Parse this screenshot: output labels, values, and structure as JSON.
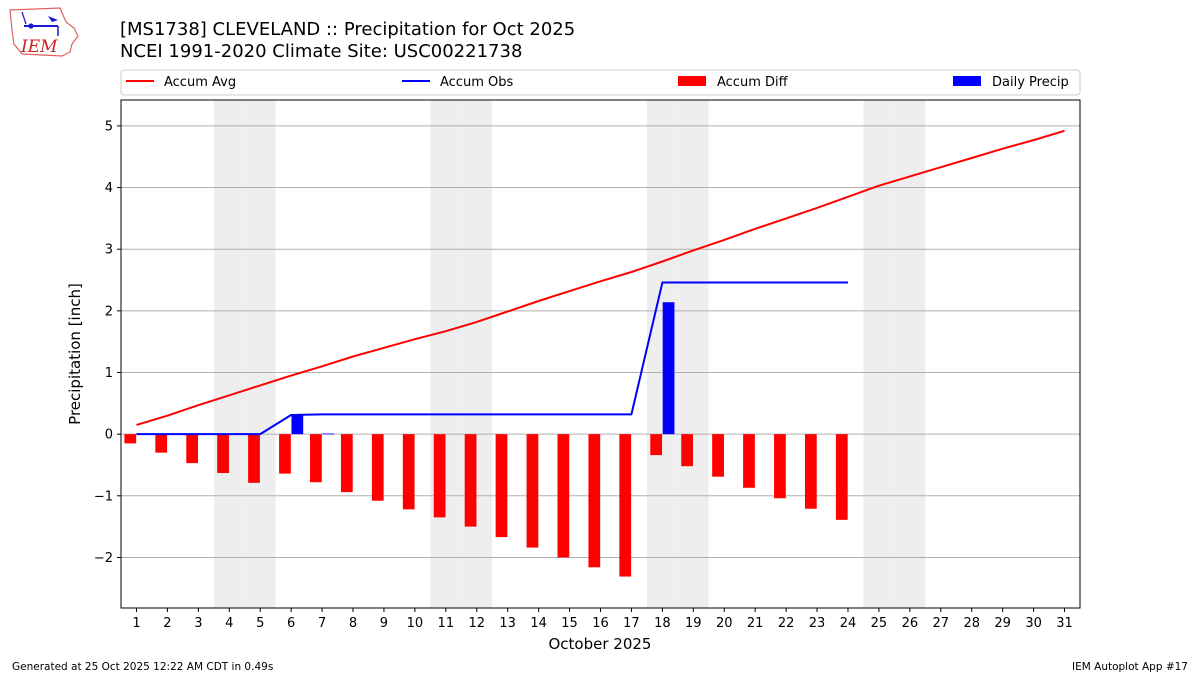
{
  "header": {
    "title_line1": "[MS1738] CLEVELAND :: Precipitation for Oct 2025",
    "title_line2": "NCEI 1991-2020 Climate Site: USC00221738",
    "logo_text": "IEM"
  },
  "footer": {
    "generated": "Generated at 25 Oct 2025 12:22 AM CDT in 0.49s",
    "app": "IEM Autoplot App #17"
  },
  "colors": {
    "avg": "#ff0000",
    "obs": "#0000ff",
    "diff": "#ff0000",
    "daily": "#0000ff",
    "weekend": "#eeeeee",
    "grid": "#b0b0b0"
  },
  "chart_data": {
    "type": "bar",
    "title": "[MS1738] CLEVELAND :: Precipitation for Oct 2025",
    "subtitle": "NCEI 1991-2020 Climate Site: USC00221738",
    "xlabel": "October 2025",
    "ylabel": "Precipitation [inch]",
    "xlim": [
      0.5,
      31.5
    ],
    "ylim": [
      -2.82,
      5.42
    ],
    "yticks": [
      -2,
      -1,
      0,
      1,
      2,
      3,
      4,
      5
    ],
    "ytick_labels": [
      "−2",
      "−1",
      "0",
      "1",
      "2",
      "3",
      "4",
      "5"
    ],
    "grid": "y",
    "legend_placement": "top",
    "x": [
      1,
      2,
      3,
      4,
      5,
      6,
      7,
      8,
      9,
      10,
      11,
      12,
      13,
      14,
      15,
      16,
      17,
      18,
      19,
      20,
      21,
      22,
      23,
      24,
      25,
      26,
      27,
      28,
      29,
      30,
      31
    ],
    "xtick_labels": [
      "1",
      "2",
      "3",
      "4",
      "5",
      "6",
      "7",
      "8",
      "9",
      "10",
      "11",
      "12",
      "13",
      "14",
      "15",
      "16",
      "17",
      "18",
      "19",
      "20",
      "21",
      "22",
      "23",
      "24",
      "25",
      "26",
      "27",
      "28",
      "29",
      "30",
      "31"
    ],
    "weekend_days": [
      4,
      5,
      11,
      12,
      18,
      19,
      25,
      26
    ],
    "legend": [
      {
        "label": "Accum Avg",
        "kind": "line",
        "color": "#ff0000"
      },
      {
        "label": "Accum Obs",
        "kind": "line",
        "color": "#0000ff"
      },
      {
        "label": "Accum Diff",
        "kind": "bar",
        "color": "#ff0000"
      },
      {
        "label": "Daily Precip",
        "kind": "bar",
        "color": "#0000ff"
      }
    ],
    "series": [
      {
        "name": "Accum Avg",
        "type": "line",
        "color": "#ff0000",
        "x": [
          1,
          2,
          3,
          4,
          5,
          6,
          7,
          8,
          9,
          10,
          11,
          12,
          13,
          14,
          15,
          16,
          17,
          18,
          19,
          20,
          21,
          22,
          23,
          24,
          25,
          26,
          27,
          28,
          29,
          30,
          31
        ],
        "values": [
          0.15,
          0.3,
          0.47,
          0.63,
          0.79,
          0.95,
          1.1,
          1.26,
          1.4,
          1.54,
          1.67,
          1.82,
          1.99,
          2.16,
          2.32,
          2.48,
          2.63,
          2.8,
          2.98,
          3.15,
          3.33,
          3.5,
          3.67,
          3.85,
          4.03,
          4.18,
          4.33,
          4.48,
          4.63,
          4.77,
          4.92
        ]
      },
      {
        "name": "Accum Obs",
        "type": "line",
        "color": "#0000ff",
        "x": [
          1,
          2,
          3,
          4,
          5,
          6,
          7,
          8,
          9,
          10,
          11,
          12,
          13,
          14,
          15,
          16,
          17,
          18,
          19,
          20,
          21,
          22,
          23,
          24
        ],
        "values": [
          0.0,
          0.0,
          0.0,
          0.0,
          0.0,
          0.31,
          0.32,
          0.32,
          0.32,
          0.32,
          0.32,
          0.32,
          0.32,
          0.32,
          0.32,
          0.32,
          0.32,
          2.46,
          2.46,
          2.46,
          2.46,
          2.46,
          2.46,
          2.46
        ]
      },
      {
        "name": "Accum Diff",
        "type": "bar",
        "color": "#ff0000",
        "offset": -0.2,
        "x": [
          1,
          2,
          3,
          4,
          5,
          6,
          7,
          8,
          9,
          10,
          11,
          12,
          13,
          14,
          15,
          16,
          17,
          18,
          19,
          20,
          21,
          22,
          23,
          24
        ],
        "values": [
          -0.15,
          -0.3,
          -0.47,
          -0.63,
          -0.79,
          -0.64,
          -0.78,
          -0.94,
          -1.08,
          -1.22,
          -1.35,
          -1.5,
          -1.67,
          -1.84,
          -2.0,
          -2.16,
          -2.31,
          -0.34,
          -0.52,
          -0.69,
          -0.87,
          -1.04,
          -1.21,
          -1.39
        ]
      },
      {
        "name": "Daily Precip",
        "type": "bar",
        "color": "#0000ff",
        "offset": 0.2,
        "x": [
          6,
          7,
          18
        ],
        "values": [
          0.31,
          0.01,
          2.14
        ]
      }
    ]
  }
}
